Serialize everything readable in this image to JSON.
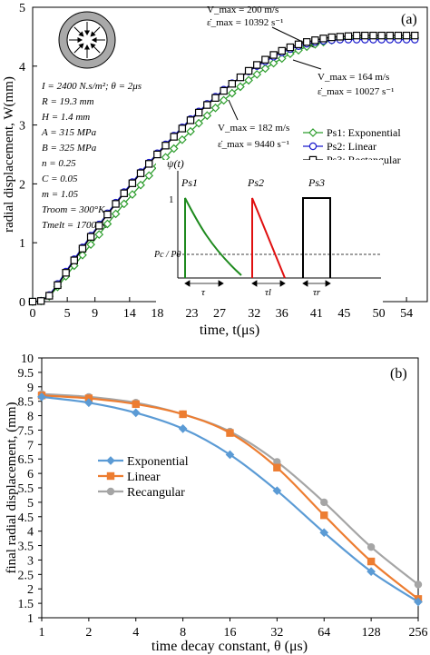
{
  "chart_data": [
    {
      "panel": "(a)",
      "type": "line",
      "xlabel": "time, t(μs)",
      "ylabel": "radial displacement, W(mm)",
      "xticks": [
        "0",
        "5",
        "9",
        "14",
        "18",
        "23",
        "27",
        "32",
        "36",
        "41",
        "45",
        "50",
        "54"
      ],
      "yticks": [
        "0",
        "1",
        "2",
        "3",
        "4",
        "5"
      ],
      "xlim": [
        0,
        57
      ],
      "ylim": [
        0,
        5
      ],
      "grid": false,
      "legend_position": "right",
      "x": [
        0,
        1.2,
        2.4,
        3.6,
        4.8,
        6,
        7.2,
        8.4,
        9.6,
        10.8,
        12,
        13.2,
        14.4,
        15.6,
        16.8,
        18,
        19.2,
        20.4,
        21.6,
        22.8,
        24,
        25.2,
        26.4,
        27.6,
        28.8,
        30,
        31.2,
        32.4,
        33.6,
        34.8,
        36,
        37.2,
        38.4,
        39.6,
        40.8,
        42,
        43.2,
        44.4,
        45.6,
        46.8,
        48,
        49.2,
        50.4,
        51.6,
        52.8,
        54,
        55.2
      ],
      "series": [
        {
          "name": "Ps1: Exponential",
          "color": "#2e9e2e",
          "marker": "diamond",
          "values": [
            0,
            0.01,
            0.09,
            0.25,
            0.43,
            0.61,
            0.79,
            0.97,
            1.14,
            1.32,
            1.49,
            1.66,
            1.82,
            1.98,
            2.14,
            2.3,
            2.45,
            2.6,
            2.75,
            2.89,
            3.03,
            3.16,
            3.29,
            3.42,
            3.54,
            3.65,
            3.76,
            3.86,
            3.96,
            4.05,
            4.13,
            4.21,
            4.27,
            4.33,
            4.37,
            4.41,
            4.44,
            4.46,
            4.47,
            4.48,
            4.48,
            4.48,
            4.48,
            4.48,
            4.48,
            4.48,
            4.48
          ]
        },
        {
          "name": "Ps2: Linear",
          "color": "#1a1acc",
          "marker": "circle",
          "values": [
            0,
            0.01,
            0.11,
            0.3,
            0.51,
            0.72,
            0.92,
            1.12,
            1.31,
            1.5,
            1.68,
            1.86,
            2.03,
            2.2,
            2.36,
            2.52,
            2.67,
            2.82,
            2.96,
            3.1,
            3.23,
            3.36,
            3.48,
            3.6,
            3.71,
            3.81,
            3.91,
            4.0,
            4.08,
            4.16,
            4.23,
            4.29,
            4.34,
            4.38,
            4.41,
            4.43,
            4.44,
            4.45,
            4.45,
            4.45,
            4.45,
            4.45,
            4.45,
            4.45,
            4.45,
            4.45,
            4.45
          ]
        },
        {
          "name": "Ps3: Rectangular",
          "color": "#000000",
          "marker": "square",
          "values": [
            0,
            0.01,
            0.1,
            0.28,
            0.49,
            0.7,
            0.9,
            1.1,
            1.29,
            1.48,
            1.66,
            1.84,
            2.01,
            2.18,
            2.34,
            2.5,
            2.65,
            2.8,
            2.94,
            3.08,
            3.21,
            3.34,
            3.46,
            3.58,
            3.7,
            3.81,
            3.92,
            4.02,
            4.11,
            4.19,
            4.26,
            4.32,
            4.37,
            4.41,
            4.44,
            4.47,
            4.49,
            4.5,
            4.51,
            4.52,
            4.52,
            4.52,
            4.52,
            4.52,
            4.52,
            4.52,
            4.52
          ]
        }
      ],
      "params": [
        "I = 2400 N.s/m²;  θ = 2μs",
        "R = 19.3 mm",
        "H = 1.4 mm",
        "A = 315 MPa",
        "B = 325 MPa",
        "n = 0.25",
        "C = 0.05",
        "m = 1.05",
        "Troom = 300°K",
        "Tmelt = 1700°K"
      ],
      "annotations": [
        {
          "v": "V_max = 200 m/s",
          "e": "ε̇_max = 10392 s⁻¹"
        },
        {
          "v": "V_max = 164 m/s",
          "e": "ε̇_max = 10027 s⁻¹"
        },
        {
          "v": "V_max = 182 m/s",
          "e": "ε̇_max = 9440 s⁻¹"
        }
      ],
      "inset": {
        "ylabel": "ψ(t)",
        "tick_one": "1",
        "threshold_label": "Pc / P0",
        "pulses": [
          {
            "label": "Ps1",
            "color": "#1e8a1e",
            "width_label": "τ"
          },
          {
            "label": "Ps2",
            "color": "#e01010",
            "width_label": "τl"
          },
          {
            "label": "Ps3",
            "color": "#000000",
            "width_label": "τr"
          }
        ]
      }
    },
    {
      "panel": "(b)",
      "type": "line",
      "xlabel": "time decay constant, θ (μs)",
      "ylabel": "final radial displacement, (mm)",
      "categories": [
        "1",
        "2",
        "4",
        "8",
        "16",
        "32",
        "64",
        "128",
        "256"
      ],
      "yticks": [
        "1",
        "1.5",
        "2",
        "2.5",
        "3",
        "3.5",
        "4",
        "4.5",
        "5",
        "5.5",
        "6",
        "6.5",
        "7",
        "7.5",
        "8",
        "8.5",
        "9",
        "9.5",
        "10"
      ],
      "ylim": [
        1,
        10
      ],
      "grid": false,
      "legend_position": "center-left",
      "series": [
        {
          "name": "Exponential",
          "color": "#5b9bd5",
          "marker": "diamond",
          "values": [
            8.65,
            8.45,
            8.1,
            7.55,
            6.65,
            5.4,
            3.95,
            2.6,
            1.55
          ]
        },
        {
          "name": "Linear",
          "color": "#ed7d31",
          "marker": "square",
          "values": [
            8.7,
            8.6,
            8.4,
            8.05,
            7.4,
            6.2,
            4.55,
            2.95,
            1.65
          ]
        },
        {
          "name": "Recangular",
          "color": "#a5a5a5",
          "marker": "circle",
          "values": [
            8.75,
            8.65,
            8.45,
            8.05,
            7.45,
            6.4,
            5.0,
            3.45,
            2.15
          ]
        }
      ]
    }
  ]
}
